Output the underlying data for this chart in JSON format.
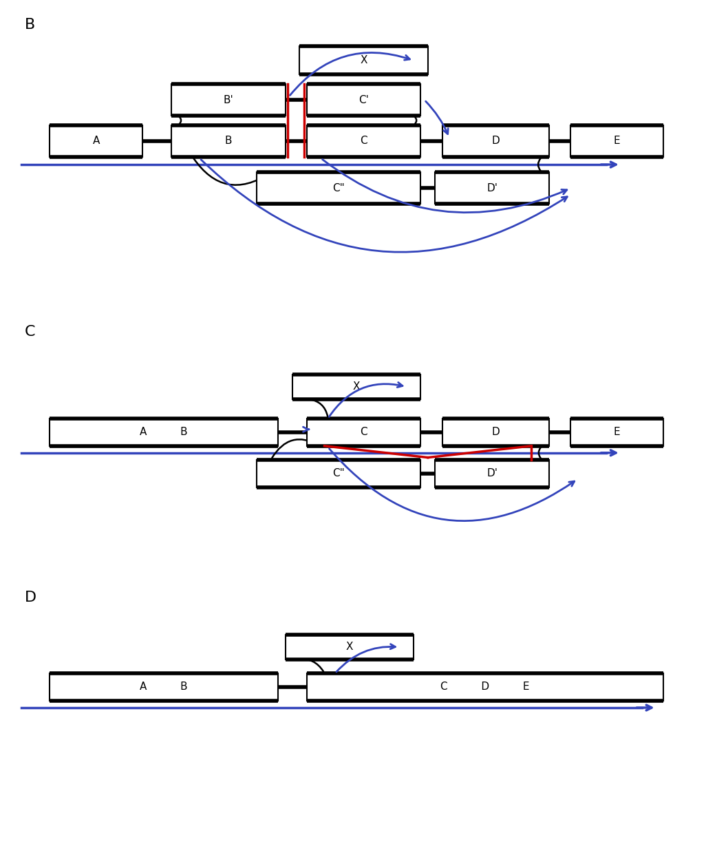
{
  "bg_color": "#ffffff",
  "blue": "#3344bb",
  "red": "#cc0000",
  "black": "#000000",
  "panel_B": {
    "boxes": {
      "A": [
        0.5,
        4.8,
        1.3,
        1.0
      ],
      "B": [
        2.2,
        4.8,
        1.6,
        1.0
      ],
      "C": [
        4.1,
        4.8,
        1.6,
        1.0
      ],
      "D": [
        6.0,
        4.8,
        1.5,
        1.0
      ],
      "E": [
        7.8,
        4.8,
        1.3,
        1.0
      ],
      "Bp": [
        2.2,
        6.1,
        1.6,
        1.0
      ],
      "Cp": [
        4.1,
        6.1,
        1.6,
        1.0
      ],
      "X": [
        4.0,
        7.4,
        1.8,
        0.9
      ],
      "Cpp": [
        3.4,
        3.3,
        2.3,
        1.0
      ],
      "Dp": [
        5.9,
        3.3,
        1.6,
        1.0
      ]
    },
    "labels": {
      "A": "A",
      "B": "B",
      "C": "C",
      "D": "D",
      "E": "E",
      "Bp": "B'",
      "Cp": "C'",
      "X": "X",
      "Cpp": "C\"",
      "Dp": "D'"
    }
  },
  "panel_C": {
    "boxes": {
      "AB": [
        0.5,
        4.8,
        3.2,
        1.0
      ],
      "C": [
        4.1,
        4.8,
        1.6,
        1.0
      ],
      "D": [
        6.0,
        4.8,
        1.5,
        1.0
      ],
      "E": [
        7.8,
        4.8,
        1.3,
        1.0
      ],
      "X": [
        3.9,
        6.5,
        1.8,
        0.9
      ],
      "Cpp": [
        3.4,
        3.3,
        2.3,
        1.0
      ],
      "Dp": [
        5.9,
        3.3,
        1.6,
        1.0
      ]
    },
    "labels": {
      "AB": "A          B",
      "C": "C",
      "D": "D",
      "E": "E",
      "X": "X",
      "Cpp": "C\"",
      "Dp": "D'"
    }
  },
  "panel_D": {
    "boxes": {
      "AB": [
        0.5,
        5.2,
        3.2,
        1.0
      ],
      "CDE": [
        4.1,
        5.2,
        5.0,
        1.0
      ],
      "X": [
        3.8,
        6.7,
        1.8,
        0.9
      ]
    },
    "labels": {
      "AB": "A          B",
      "CDE": "C          D          E",
      "X": "X"
    }
  }
}
